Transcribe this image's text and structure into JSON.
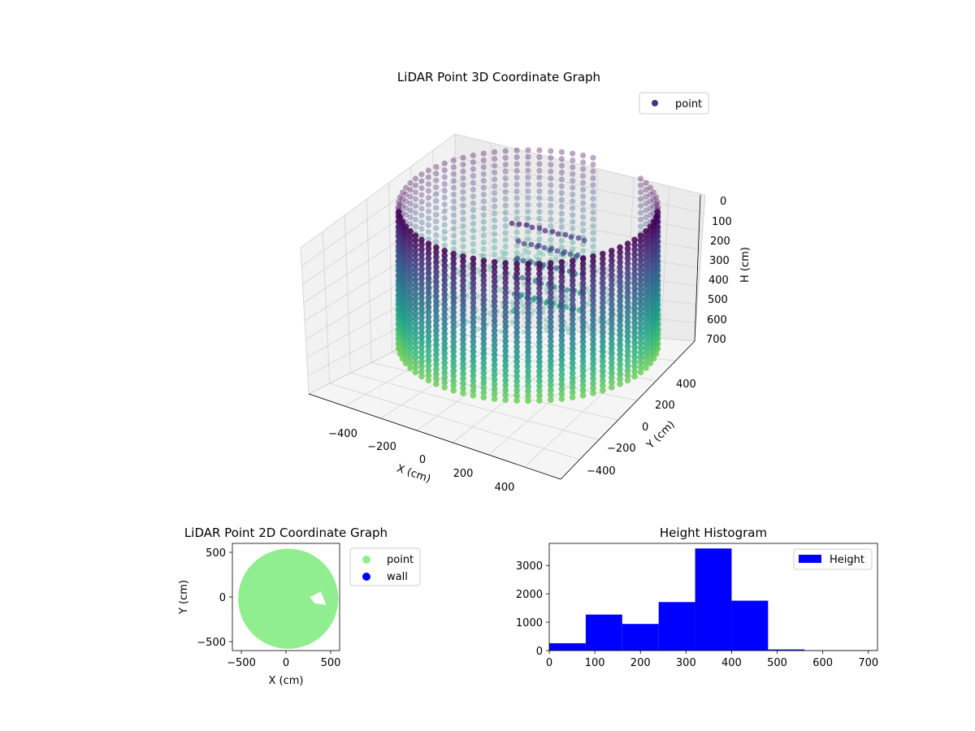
{
  "chart_data": [
    {
      "type": "scatter",
      "title": "LiDAR Point 3D Coordinate Graph",
      "xlabel": "X (cm)",
      "ylabel": "Y (cm)",
      "zlabel": "H (cm)",
      "x_ticks": [
        "−400",
        "−200",
        "0",
        "200",
        "400"
      ],
      "y_ticks": [
        "−400",
        "−200",
        "0",
        "200",
        "400"
      ],
      "z_ticks": [
        "0",
        "100",
        "200",
        "300",
        "400",
        "500",
        "600",
        "700"
      ],
      "xlim": [
        -560,
        560
      ],
      "ylim": [
        -560,
        560
      ],
      "zlim": [
        0,
        720
      ],
      "z_inverted": true,
      "legend": [
        "point"
      ],
      "legend_position": "top-right",
      "grid": true,
      "shape": "cylindrical wall of radius ~560 cm, heights 0-700 cm, with interior object near the back-right",
      "colormap": "viridis",
      "colors": {
        "marker": "#46327e",
        "legend_marker": "#46337e"
      }
    },
    {
      "type": "scatter",
      "title": "LiDAR Point 2D Coordinate Graph",
      "xlabel": "X (cm)",
      "ylabel": "Y (cm)",
      "x_ticks": [
        "−500",
        "0",
        "500"
      ],
      "y_ticks": [
        "−500",
        "0",
        "500"
      ],
      "xlim": [
        -600,
        600
      ],
      "ylim": [
        -600,
        600
      ],
      "series": [
        {
          "name": "point",
          "color": "#90ee90"
        },
        {
          "name": "wall",
          "color": "#0000ff"
        }
      ],
      "legend_position": "outside-right",
      "shape": "filled disc of radius ~550 cm with a small notch near (380, -20)"
    },
    {
      "type": "bar",
      "title": "Height Histogram",
      "bin_edges": [
        0,
        80,
        160,
        240,
        320,
        400,
        480,
        560,
        640,
        720
      ],
      "values": [
        260,
        1270,
        940,
        1710,
        3600,
        1760,
        40,
        10,
        10
      ],
      "x_ticks": [
        "0",
        "100",
        "200",
        "300",
        "400",
        "500",
        "600",
        "700"
      ],
      "x_tick_values": [
        0,
        100,
        200,
        300,
        400,
        500,
        600,
        700
      ],
      "y_ticks": [
        "0",
        "1000",
        "2000",
        "3000"
      ],
      "y_tick_values": [
        0,
        1000,
        2000,
        3000
      ],
      "xlim": [
        0,
        720
      ],
      "ylim": [
        0,
        3780
      ],
      "legend": [
        "Height"
      ],
      "legend_position": "top-right",
      "colors": {
        "bar": "#0000ff"
      }
    }
  ]
}
